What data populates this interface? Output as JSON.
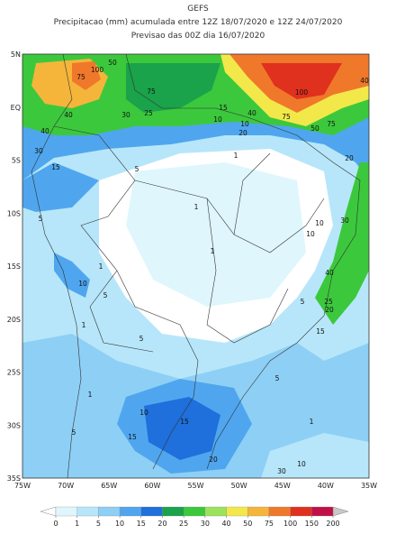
{
  "header": {
    "title": "GEFS",
    "subtitle": "Precipitacao (mm) acumulada entre 12Z 18/07/2020 e 12Z 24/07/2020",
    "issued": "Previsao das 00Z dia 16/07/2020"
  },
  "map": {
    "lat_labels": [
      "5N",
      "EQ",
      "5S",
      "10S",
      "15S",
      "20S",
      "25S",
      "30S",
      "35S"
    ],
    "lon_labels": [
      "75W",
      "70W",
      "65W",
      "60W",
      "55W",
      "50W",
      "45W",
      "40W",
      "35W"
    ],
    "contour_labels": [
      "50",
      "100",
      "75",
      "75",
      "40",
      "25",
      "30",
      "15",
      "10",
      "40",
      "10",
      "20",
      "100",
      "75",
      "50",
      "75",
      "40",
      "20",
      "40",
      "30",
      "15",
      "5",
      "1",
      "5",
      "10",
      "10",
      "30",
      "1",
      "1",
      "40",
      "25",
      "20",
      "5",
      "10",
      "5",
      "1",
      "5",
      "15",
      "5",
      "1",
      "10",
      "15",
      "1",
      "5",
      "15",
      "20",
      "10",
      "30",
      "1"
    ]
  },
  "colorbar": {
    "ticks": [
      0,
      1,
      5,
      10,
      15,
      20,
      25,
      30,
      40,
      50,
      75,
      100,
      150,
      200
    ],
    "colors": [
      "#dff6fd",
      "#b7e6fa",
      "#8ecff5",
      "#4fa6ee",
      "#1f6fdc",
      "#1aa34a",
      "#3cc83c",
      "#9ae35a",
      "#f2e84a",
      "#f5b53a",
      "#f0782a",
      "#e0301e",
      "#c01048"
    ],
    "under_color": "#ffffff",
    "over_color": "#c8c8c8"
  }
}
